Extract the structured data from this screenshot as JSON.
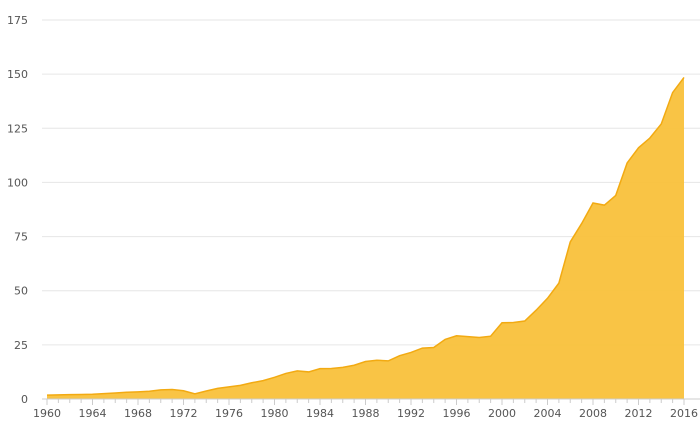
{
  "chart_data": {
    "type": "area",
    "title": "",
    "xlabel": "",
    "ylabel": "",
    "xlim": [
      1960,
      2016
    ],
    "ylim": [
      0,
      175
    ],
    "y_ticks": [
      0,
      25,
      50,
      75,
      100,
      125,
      150,
      175
    ],
    "x_ticks": [
      1960,
      1964,
      1968,
      1972,
      1976,
      1980,
      1984,
      1988,
      1992,
      1996,
      2000,
      2004,
      2008,
      2012,
      2016
    ],
    "grid": true,
    "legend": "none",
    "fill_color": "#f9c13b",
    "line_color": "#f2aa12",
    "series": [
      {
        "x": [
          1960,
          1961,
          1962,
          1963,
          1964,
          1965,
          1966,
          1967,
          1968,
          1969,
          1970,
          1971,
          1972,
          1973,
          1974,
          1975,
          1976,
          1977,
          1978,
          1979,
          1980,
          1981,
          1982,
          1983,
          1984,
          1985,
          1986,
          1987,
          1988,
          1989,
          1990,
          1991,
          1992,
          1993,
          1994,
          1995,
          1996,
          1997,
          1998,
          1999,
          2000,
          2001,
          2002,
          2003,
          2004,
          2005,
          2006,
          2007,
          2008,
          2009,
          2010,
          2011,
          2012,
          2013,
          2014,
          2015,
          2016
        ],
        "values": [
          1.8,
          1.9,
          2.0,
          2.1,
          2.2,
          2.5,
          2.8,
          3.1,
          3.3,
          3.6,
          4.2,
          4.4,
          3.8,
          2.4,
          3.7,
          4.9,
          5.6,
          6.3,
          7.5,
          8.5,
          10.0,
          11.8,
          13.0,
          12.5,
          14.0,
          14.1,
          14.6,
          15.6,
          17.3,
          17.9,
          17.6,
          20.0,
          21.5,
          23.5,
          23.8,
          27.5,
          29.2,
          28.8,
          28.4,
          29.0,
          35.2,
          35.3,
          36.0,
          41.0,
          46.5,
          53.5,
          72.5,
          81.0,
          90.5,
          89.5,
          94.0,
          109.0,
          116.0,
          120.5,
          127.0,
          141.5,
          148.5
        ]
      }
    ]
  }
}
